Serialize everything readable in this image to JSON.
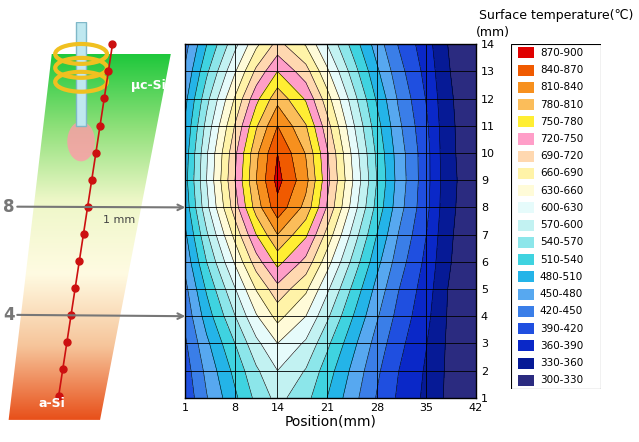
{
  "chart_data": {
    "type": "contour",
    "x_label": "Position(mm)",
    "y_label": "(mm)",
    "colorbar_title": "Surface temperature(℃)",
    "x": [
      1,
      4,
      8,
      11,
      14,
      18,
      21,
      25,
      28,
      31,
      35,
      38,
      42
    ],
    "y": [
      1,
      2,
      3,
      4,
      5,
      6,
      7,
      8,
      9,
      10,
      11,
      12,
      13,
      14
    ],
    "cells": [
      [
        399,
        448,
        504,
        548,
        580,
        550,
        510,
        456,
        418,
        386,
        353,
        324,
        310
      ],
      [
        406,
        458,
        519,
        565,
        600,
        568,
        525,
        467,
        426,
        391,
        356,
        325,
        310
      ],
      [
        416,
        473,
        540,
        592,
        630,
        595,
        547,
        483,
        438,
        400,
        361,
        326,
        310
      ],
      [
        429,
        494,
        569,
        627,
        670,
        630,
        576,
        504,
        454,
        411,
        368,
        328,
        310
      ],
      [
        442,
        514,
        598,
        662,
        710,
        666,
        606,
        526,
        470,
        422,
        374,
        330,
        310
      ],
      [
        459,
        540,
        634,
        706,
        760,
        711,
        643,
        553,
        490,
        436,
        382,
        333,
        310
      ],
      [
        475,
        565,
        670,
        750,
        810,
        755,
        680,
        580,
        510,
        450,
        390,
        335,
        310
      ],
      [
        492,
        591,
        706,
        794,
        860,
        800,
        717,
        607,
        530,
        464,
        398,
        338,
        310
      ],
      [
        500,
        600,
        720,
        810,
        880,
        820,
        730,
        620,
        540,
        470,
        400,
        340,
        310
      ],
      [
        495,
        596,
        713,
        803,
        870,
        808,
        724,
        612,
        534,
        467,
        400,
        338,
        310
      ],
      [
        485,
        580,
        692,
        776,
        840,
        782,
        702,
        596,
        522,
        458,
        395,
        337,
        310
      ],
      [
        472,
        560,
        663,
        741,
        800,
        746,
        673,
        575,
        506,
        447,
        388,
        335,
        310
      ],
      [
        455,
        534,
        627,
        697,
        750,
        702,
        636,
        548,
        486,
        433,
        380,
        332,
        310
      ],
      [
        439,
        509,
        591,
        653,
        700,
        657,
        599,
        521,
        466,
        419,
        372,
        330,
        310
      ]
    ],
    "xlim": [
      1,
      42
    ],
    "xticks": [
      1,
      8,
      14,
      21,
      28,
      35,
      42
    ],
    "ylim": [
      1,
      14
    ],
    "yticks": [
      1,
      2,
      3,
      4,
      5,
      6,
      7,
      8,
      9,
      10,
      11,
      12,
      13,
      14
    ],
    "grid": true,
    "colorbar": [
      {
        "label": "870-900",
        "range": [
          870,
          900
        ],
        "color": "#e00000"
      },
      {
        "label": "840-870",
        "range": [
          840,
          870
        ],
        "color": "#f05a00"
      },
      {
        "label": "810-840",
        "range": [
          810,
          840
        ],
        "color": "#f7901e"
      },
      {
        "label": "780-810",
        "range": [
          780,
          810
        ],
        "color": "#fbbd5a"
      },
      {
        "label": "750-780",
        "range": [
          750,
          780
        ],
        "color": "#ffee33"
      },
      {
        "label": "720-750",
        "range": [
          720,
          750
        ],
        "color": "#ff9ec8"
      },
      {
        "label": "690-720",
        "range": [
          690,
          720
        ],
        "color": "#ffd8b0"
      },
      {
        "label": "660-690",
        "range": [
          660,
          690
        ],
        "color": "#fff3a8"
      },
      {
        "label": "630-660",
        "range": [
          630,
          660
        ],
        "color": "#fffbd8"
      },
      {
        "label": "600-630",
        "range": [
          600,
          630
        ],
        "color": "#e6fbfb"
      },
      {
        "label": "570-600",
        "range": [
          570,
          600
        ],
        "color": "#c2f2f2"
      },
      {
        "label": "540-570",
        "range": [
          540,
          570
        ],
        "color": "#8ce6ea"
      },
      {
        "label": "510-540",
        "range": [
          510,
          540
        ],
        "color": "#3fd3e0"
      },
      {
        "label": "480-510",
        "range": [
          480,
          510
        ],
        "color": "#24b4e8"
      },
      {
        "label": "450-480",
        "range": [
          450,
          480
        ],
        "color": "#57a8f0"
      },
      {
        "label": "420-450",
        "range": [
          420,
          450
        ],
        "color": "#3a7ee8"
      },
      {
        "label": "390-420",
        "range": [
          390,
          420
        ],
        "color": "#1f4fe0"
      },
      {
        "label": "360-390",
        "range": [
          360,
          390
        ],
        "color": "#0a28c8"
      },
      {
        "label": "330-360",
        "range": [
          330,
          360
        ],
        "color": "#061a96"
      },
      {
        "label": "300-330",
        "range": [
          300,
          330
        ],
        "color": "#2b2b80"
      }
    ],
    "schematic": {
      "top_label": "μc-Si",
      "bottom_label": "a-Si",
      "markers": [
        8,
        4
      ],
      "spacing_label": "1 mm"
    }
  }
}
